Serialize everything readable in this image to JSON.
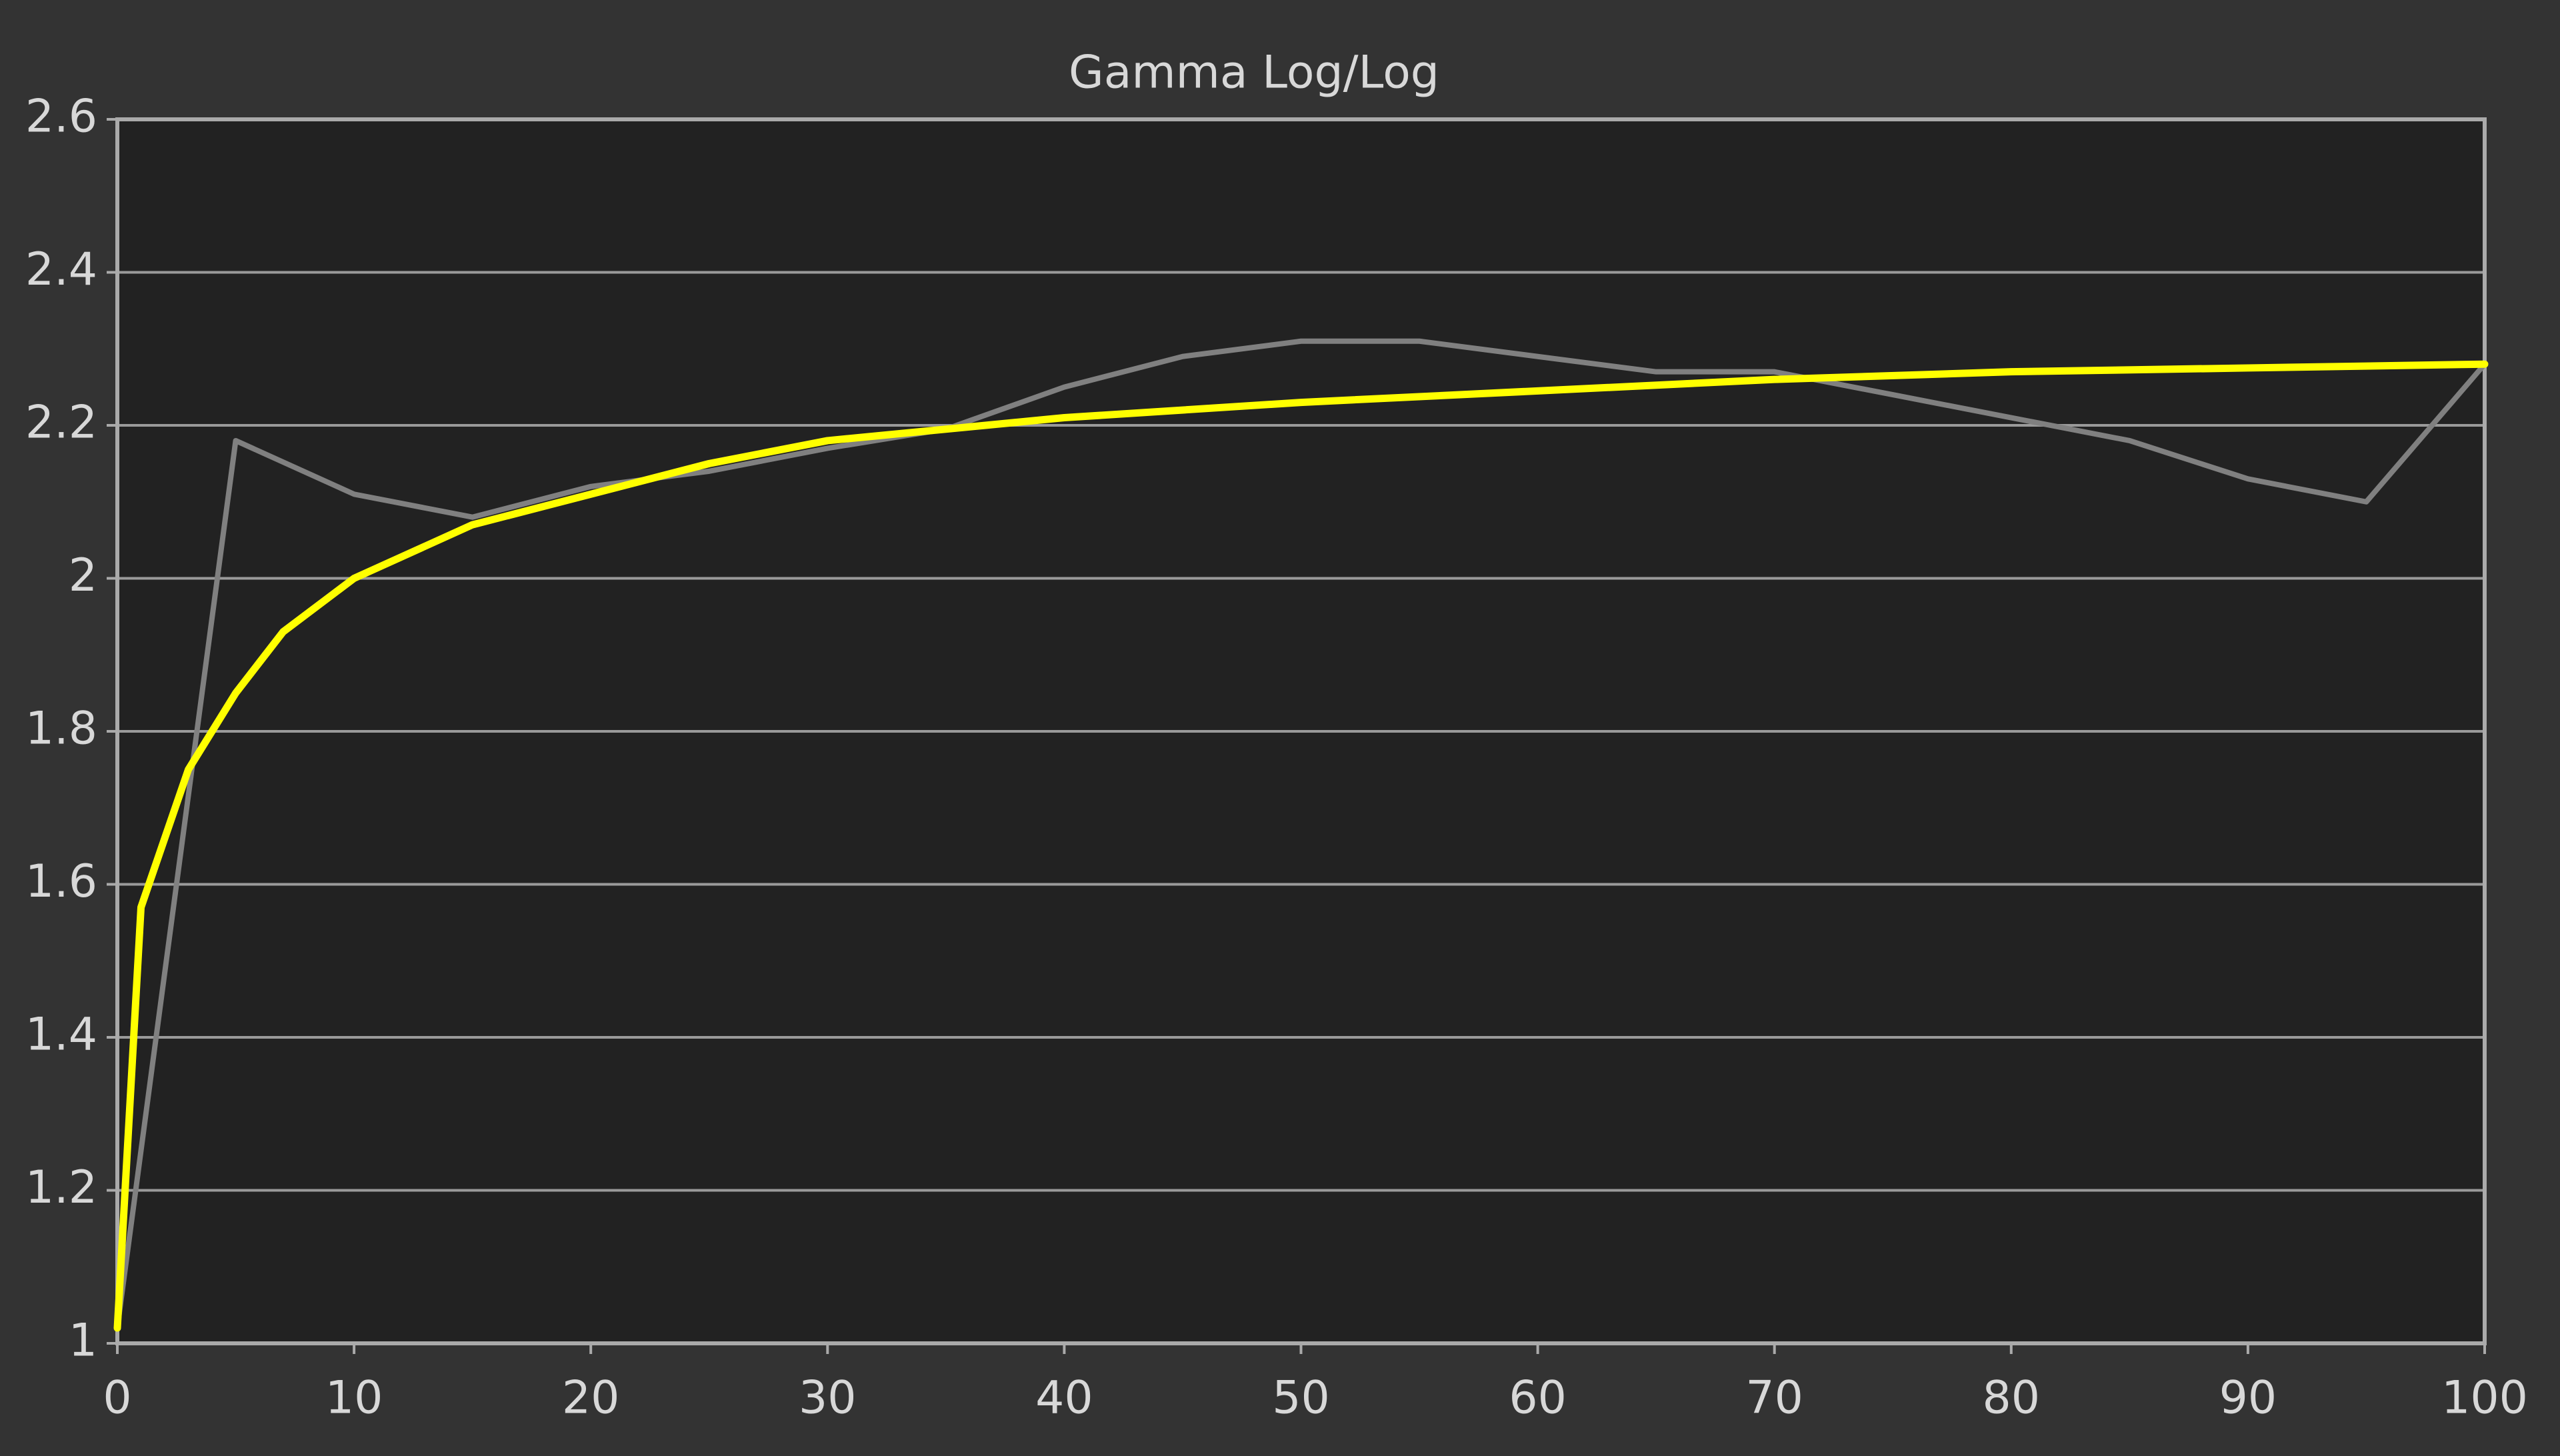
{
  "chart_data": {
    "type": "line",
    "title": "Gamma Log/Log",
    "series": [
      {
        "color": "#808080",
        "x": [
          0,
          5,
          10,
          15,
          20,
          25,
          30,
          35,
          40,
          45,
          50,
          55,
          60,
          65,
          70,
          75,
          80,
          85,
          90,
          95,
          100
        ],
        "values": [
          1.02,
          2.18,
          2.11,
          2.08,
          2.12,
          2.14,
          2.17,
          2.195,
          2.25,
          2.29,
          2.31,
          2.31,
          2.29,
          2.27,
          2.27,
          2.24,
          2.21,
          2.18,
          2.13,
          2.1,
          2.28
        ]
      },
      {
        "color": "#ffff00",
        "x": [
          0,
          1,
          3,
          5,
          7,
          10,
          15,
          20,
          25,
          30,
          40,
          50,
          60,
          70,
          80,
          90,
          100
        ],
        "values": [
          1.02,
          1.57,
          1.75,
          1.85,
          1.93,
          2.0,
          2.07,
          2.11,
          2.15,
          2.18,
          2.21,
          2.23,
          2.245,
          2.26,
          2.27,
          2.275,
          2.28
        ]
      }
    ],
    "xlim": [
      0,
      100
    ],
    "xticks": [
      0,
      10,
      20,
      30,
      40,
      50,
      60,
      70,
      80,
      90,
      100
    ],
    "ylim": [
      1,
      2.6
    ],
    "yticks": [
      1,
      1.2,
      1.4,
      1.6,
      1.8,
      2,
      2.2,
      2.4,
      2.6
    ],
    "grid": true
  }
}
